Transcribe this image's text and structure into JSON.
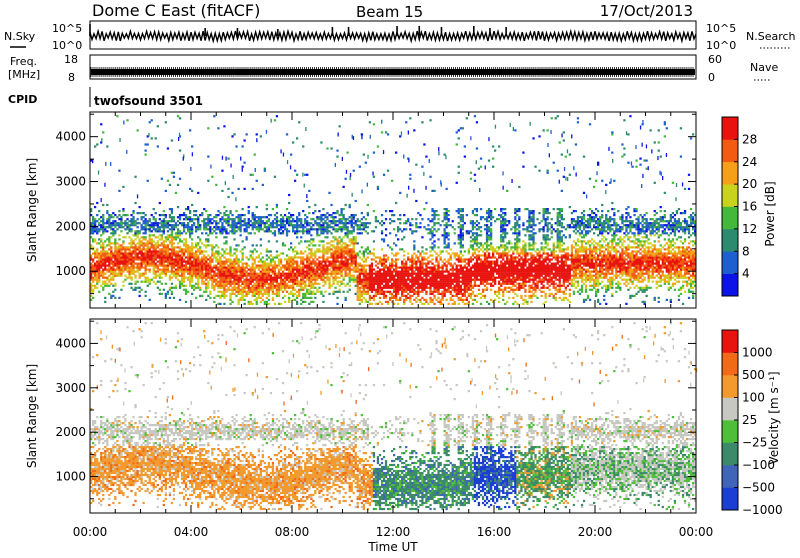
{
  "header": {
    "station": "Dome C East (fitACF)",
    "beam": "Beam 15",
    "date": "17/Oct/2013"
  },
  "strips": {
    "nsky": {
      "left_label": "N.Sky",
      "left_ticks": [
        "10^5",
        "10^0"
      ],
      "right_label": "N.Search",
      "right_ticks": [
        "10^5",
        "10^0"
      ]
    },
    "freq": {
      "left_label_1": "Freq.",
      "left_label_2": "[MHz]",
      "left_ticks": [
        "18",
        "8"
      ],
      "right_label": "Nave",
      "right_ticks": [
        "60",
        "0"
      ]
    },
    "cpid": {
      "left_label": "CPID",
      "program": "twofsound 3501"
    }
  },
  "chart_data": [
    {
      "type": "heatmap",
      "name": "power",
      "ylabel": "Slant Range [km]",
      "xlabel": "",
      "x_range_hours": [
        0,
        24
      ],
      "ylim": [
        180,
        4550
      ],
      "y_ticks": [
        1000,
        2000,
        3000,
        4000
      ],
      "y_tick_labels": [
        "1000",
        "2000",
        "3000",
        "4000"
      ],
      "colorbar": {
        "label": "Power [dB]",
        "range": [
          0,
          32
        ],
        "ticks": [
          4,
          8,
          12,
          16,
          20,
          24,
          28
        ],
        "tick_labels": [
          "4",
          "8",
          "12",
          "16",
          "20",
          "24",
          "28"
        ],
        "colors": [
          "#0a14e6",
          "#1e5fcf",
          "#2c8a6e",
          "#44b83a",
          "#c9d21c",
          "#f6a01a",
          "#f25c12",
          "#e8130f"
        ]
      }
    },
    {
      "type": "heatmap",
      "name": "velocity",
      "ylabel": "Slant Range [km]",
      "xlabel": "Time UT",
      "x_range_hours": [
        0,
        24
      ],
      "x_ticks": [
        "00:00",
        "04:00",
        "08:00",
        "12:00",
        "16:00",
        "20:00",
        "00:00"
      ],
      "ylim": [
        180,
        4550
      ],
      "y_ticks": [
        1000,
        2000,
        3000,
        4000
      ],
      "y_tick_labels": [
        "1000",
        "2000",
        "3000",
        "4000"
      ],
      "colorbar": {
        "label": "Velocity [m s⁻¹]",
        "tick_labels": [
          "1000",
          "500",
          "100",
          "25",
          "−25",
          "−100",
          "−500",
          "−1000"
        ],
        "colors": [
          "#1a3fd2",
          "#3f64b8",
          "#3d8a6b",
          "#4fbf3a",
          "#c8c8c2",
          "#f29a2e",
          "#f06a18",
          "#e8140f"
        ]
      }
    }
  ]
}
